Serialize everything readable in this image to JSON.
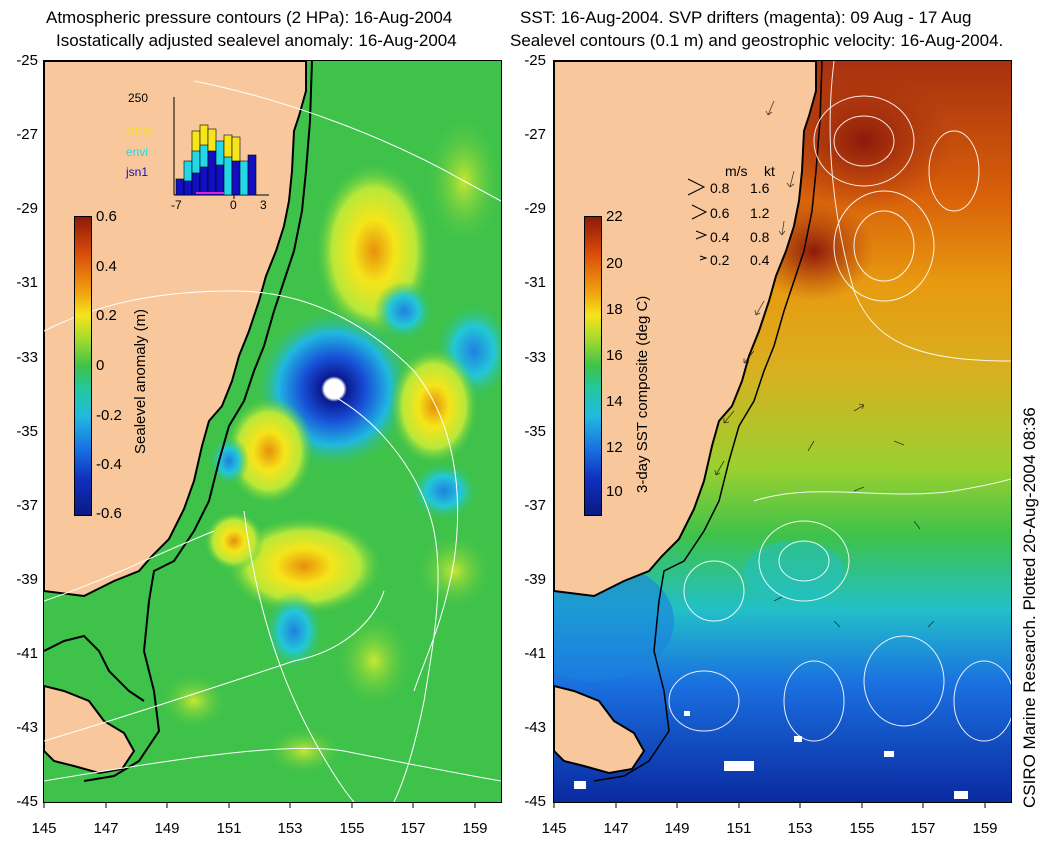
{
  "left_title_1": "Atmospheric pressure contours (2 HPa): 16-Aug-2004",
  "left_title_2": "Isostatically adjusted sealevel anomaly: 16-Aug-2004",
  "right_title_1": "SST: 16-Aug-2004. SVP drifters (magenta): 09 Aug - 17 Aug",
  "right_title_2": "Sealevel contours (0.1 m) and geostrophic velocity: 16-Aug-2004.",
  "lat_ticks": [
    "-25",
    "-27",
    "-29",
    "-31",
    "-33",
    "-35",
    "-37",
    "-39",
    "-41",
    "-43",
    "-45"
  ],
  "lon_ticks": [
    "145",
    "147",
    "149",
    "151",
    "153",
    "155",
    "157",
    "159"
  ],
  "left_colorbar": {
    "label": "Sealevel anomaly (m)",
    "ticks": [
      "0.6",
      "0.4",
      "0.2",
      "0",
      "-0.2",
      "-0.4",
      "-0.6"
    ]
  },
  "right_colorbar": {
    "label": "3-day SST composite (deg C)",
    "ticks": [
      "22",
      "20",
      "18",
      "16",
      "14",
      "12",
      "10"
    ]
  },
  "inset": {
    "ymax_label": "250",
    "x_ticks": [
      "-7",
      "0",
      "3"
    ],
    "legend": [
      {
        "name": "GFO",
        "color": "#f5e51a"
      },
      {
        "name": "envi",
        "color": "#22d8e8"
      },
      {
        "name": "jsn1",
        "color": "#1010c0"
      }
    ]
  },
  "velocity_legend": {
    "header_ms": "m/s",
    "header_kt": "kt",
    "rows": [
      {
        "ms": "0.8",
        "kt": "1.6"
      },
      {
        "ms": "0.6",
        "kt": "1.2"
      },
      {
        "ms": "0.4",
        "kt": "0.8"
      },
      {
        "ms": "0.2",
        "kt": "0.4"
      }
    ]
  },
  "credit": "CSIRO Marine Research. Plotted 20-Aug-2004 08:36",
  "colors": {
    "land": "#f8c89c",
    "coast": "#000000",
    "contour": "#ffffff"
  }
}
